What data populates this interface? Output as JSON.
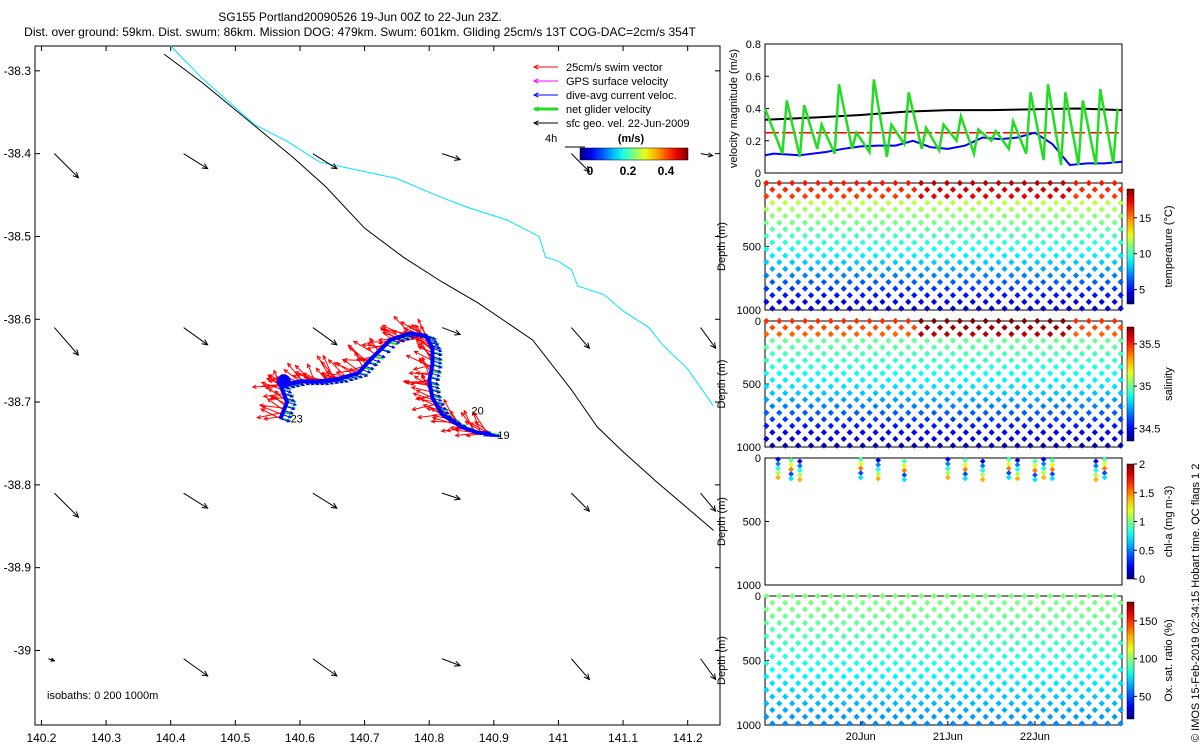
{
  "header": {
    "line1": "SG155 Portland20090526 19-Jun 00Z to 22-Jun 23Z.",
    "line2": "Dist. over ground: 59km. Dist. swum: 86km. Mission DOG: 479km. Swum: 601km. Gliding 25cm/s 13T COG-DAC=2cm/s 354T"
  },
  "credit": "© IMOS 15-Feb-2019 02:34:15 Hobart time. QC flags 1  2",
  "colors": {
    "swim": "#ff0000",
    "gps": "#ff00ff",
    "dac": "#0000ff",
    "net": "#22dd22",
    "geo": "#000000",
    "isobath200": "#000000",
    "isobath1000": "#00e5ff"
  },
  "chart_data": [
    {
      "type": "map",
      "xlim": [
        140.19,
        141.25
      ],
      "ylim": [
        -39.09,
        -38.27
      ],
      "xticks": [
        "140.2",
        "140.3",
        "140.4",
        "140.5",
        "140.6",
        "140.7",
        "140.8",
        "140.9",
        "141",
        "141.1",
        "141.2"
      ],
      "yticks": [
        "-38.3",
        "-38.4",
        "-38.5",
        "-38.6",
        "-38.7",
        "-38.8",
        "-38.9",
        "-39"
      ],
      "legend": {
        "entries": [
          "25cm/s swim vector",
          "GPS surface velocity",
          "dive-avg current veloc.",
          "net glider velocity",
          "sfc geo. vel. 22-Jun-2009"
        ],
        "scale_label": "4h",
        "colorbar_title": "(m/s)",
        "colorbar_ticks": [
          "0",
          "0.2",
          "0.4"
        ]
      },
      "isobath_label": "isobaths: 0   200   1000m",
      "track_labels": [
        {
          "text": "23",
          "lon": 140.57,
          "lat": -38.72
        },
        {
          "text": "20",
          "lon": 140.85,
          "lat": -38.71
        },
        {
          "text": "19",
          "lon": 140.89,
          "lat": -38.74
        }
      ],
      "track": [
        [
          140.57,
          -38.72
        ],
        [
          140.58,
          -38.7
        ],
        [
          140.57,
          -38.68
        ],
        [
          140.6,
          -38.675
        ],
        [
          140.63,
          -38.675
        ],
        [
          140.66,
          -38.672
        ],
        [
          140.69,
          -38.665
        ],
        [
          140.71,
          -38.648
        ],
        [
          140.74,
          -38.625
        ],
        [
          140.77,
          -38.617
        ],
        [
          140.795,
          -38.62
        ],
        [
          140.805,
          -38.635
        ],
        [
          140.805,
          -38.655
        ],
        [
          140.8,
          -38.675
        ],
        [
          140.805,
          -38.695
        ],
        [
          140.82,
          -38.715
        ],
        [
          140.85,
          -38.73
        ],
        [
          140.875,
          -38.737
        ],
        [
          140.895,
          -38.738
        ]
      ],
      "isobath_200": [
        [
          140.39,
          -38.28
        ],
        [
          140.45,
          -38.315
        ],
        [
          140.52,
          -38.36
        ],
        [
          140.59,
          -38.405
        ],
        [
          140.64,
          -38.44
        ],
        [
          140.7,
          -38.49
        ],
        [
          140.76,
          -38.525
        ],
        [
          140.82,
          -38.555
        ],
        [
          140.875,
          -38.58
        ],
        [
          140.96,
          -38.625
        ],
        [
          141.02,
          -38.685
        ],
        [
          141.06,
          -38.73
        ],
        [
          141.1,
          -38.76
        ],
        [
          141.15,
          -38.795
        ],
        [
          141.24,
          -38.855
        ]
      ],
      "isobath_1000": [
        [
          140.4,
          -38.27
        ],
        [
          140.45,
          -38.31
        ],
        [
          140.53,
          -38.365
        ],
        [
          140.58,
          -38.385
        ],
        [
          140.63,
          -38.41
        ],
        [
          140.69,
          -38.42
        ],
        [
          140.75,
          -38.43
        ],
        [
          140.81,
          -38.45
        ],
        [
          140.86,
          -38.465
        ],
        [
          140.92,
          -38.48
        ],
        [
          140.97,
          -38.5
        ],
        [
          140.98,
          -38.525
        ],
        [
          141.0,
          -38.53
        ],
        [
          141.02,
          -38.54
        ],
        [
          141.03,
          -38.56
        ],
        [
          141.07,
          -38.57
        ],
        [
          141.1,
          -38.59
        ],
        [
          141.14,
          -38.61
        ],
        [
          141.16,
          -38.63
        ],
        [
          141.2,
          -38.66
        ],
        [
          141.24,
          -38.705
        ]
      ],
      "geo_vectors": {
        "lons": [
          140.22,
          140.42,
          140.62,
          140.82,
          141.02,
          141.22
        ],
        "lats": [
          -38.4,
          -38.61,
          -38.81,
          -39.01
        ],
        "u": [
          0.08,
          0.08,
          0.08,
          0.06,
          0.06,
          0.05
        ],
        "v": [
          -0.08,
          -0.05,
          -0.05,
          -0.02,
          -0.06,
          -0.06
        ]
      }
    },
    {
      "type": "line",
      "ylabel": "velocity magnitude (m/s)",
      "xlim": [
        18.9,
        23.0
      ],
      "ylim": [
        0,
        0.8
      ],
      "yticks": [
        "0",
        "0.2",
        "0.4",
        "0.6",
        "0.8"
      ],
      "series": [
        {
          "name": "sfc geo. vel.",
          "color": "#000000",
          "x": [
            18.9,
            19.5,
            20.0,
            20.5,
            21.0,
            21.5,
            22.0,
            22.5,
            23.0
          ],
          "y": [
            0.33,
            0.345,
            0.36,
            0.38,
            0.39,
            0.39,
            0.395,
            0.4,
            0.39
          ]
        },
        {
          "name": "25cm/s swim vector",
          "color": "#ff0000",
          "x": [
            18.9,
            23.0
          ],
          "y": [
            0.25,
            0.25
          ]
        },
        {
          "name": "dive-avg current veloc.",
          "color": "#0000ff",
          "x": [
            18.9,
            19.0,
            19.3,
            19.6,
            19.8,
            20.0,
            20.2,
            20.4,
            20.6,
            20.8,
            21.0,
            21.2,
            21.4,
            21.6,
            21.8,
            22.0,
            22.2,
            22.4,
            22.6,
            22.8,
            23.0
          ],
          "y": [
            0.11,
            0.12,
            0.11,
            0.13,
            0.15,
            0.165,
            0.17,
            0.17,
            0.2,
            0.16,
            0.15,
            0.17,
            0.22,
            0.21,
            0.22,
            0.25,
            0.18,
            0.05,
            0.06,
            0.06,
            0.07
          ]
        },
        {
          "name": "net glider velocity",
          "color": "#22dd22",
          "x": [
            18.9,
            19.1,
            19.15,
            19.3,
            19.35,
            19.5,
            19.55,
            19.7,
            19.75,
            19.9,
            19.95,
            20.1,
            20.15,
            20.3,
            20.35,
            20.5,
            20.55,
            20.7,
            20.75,
            20.9,
            20.95,
            21.1,
            21.15,
            21.3,
            21.35,
            21.5,
            21.55,
            21.7,
            21.75,
            21.9,
            21.95,
            22.1,
            22.15,
            22.3,
            22.35,
            22.5,
            22.55,
            22.7,
            22.75,
            22.9,
            22.95
          ],
          "y": [
            0.4,
            0.12,
            0.45,
            0.1,
            0.42,
            0.15,
            0.3,
            0.12,
            0.55,
            0.15,
            0.25,
            0.13,
            0.58,
            0.1,
            0.3,
            0.18,
            0.5,
            0.15,
            0.28,
            0.14,
            0.3,
            0.2,
            0.35,
            0.12,
            0.27,
            0.2,
            0.26,
            0.15,
            0.32,
            0.12,
            0.5,
            0.08,
            0.55,
            0.05,
            0.5,
            0.05,
            0.45,
            0.05,
            0.52,
            0.06,
            0.4
          ]
        }
      ]
    },
    {
      "type": "scatter",
      "ylabel": "Depth (m)",
      "clabel": "temperature (°C)",
      "ylim": [
        0,
        1000
      ],
      "yticks": [
        "0",
        "500",
        "1000"
      ],
      "clim": [
        3,
        19
      ],
      "cticks": [
        {
          "v": 5,
          "t": "5"
        },
        {
          "v": 10,
          "t": "10"
        },
        {
          "v": 15,
          "t": "15"
        }
      ],
      "profile": {
        "surface": [
          16,
          18
        ],
        "mid": [
          9,
          12
        ],
        "deep": 4
      },
      "dives_from": 0,
      "depth_max": 1000
    },
    {
      "type": "scatter",
      "ylabel": "Depth (m)",
      "clabel": "salinity",
      "ylim": [
        0,
        1000
      ],
      "yticks": [
        "0",
        "500",
        "1000"
      ],
      "clim": [
        34.35,
        35.7
      ],
      "cticks": [
        {
          "v": 34.5,
          "t": "34.5"
        },
        {
          "v": 35,
          "t": "35"
        },
        {
          "v": 35.5,
          "t": "35.5"
        }
      ],
      "profile": {
        "surface": [
          35.35,
          35.7
        ],
        "mid": [
          34.8,
          35.0
        ],
        "deep": 34.4
      },
      "dives_from": 0,
      "depth_max": 1000
    },
    {
      "type": "scatter",
      "ylabel": "Depth (m)",
      "clabel": "chl-a (mg m-3)",
      "ylim": [
        0,
        1000
      ],
      "yticks": [
        "0",
        "500",
        "1000"
      ],
      "clim": [
        0,
        2
      ],
      "cticks": [
        {
          "v": 0,
          "t": "0"
        },
        {
          "v": 0.5,
          "t": "0.5"
        },
        {
          "v": 1,
          "t": "1"
        },
        {
          "v": 1.5,
          "t": "1.5"
        },
        {
          "v": 2,
          "t": "2"
        }
      ],
      "sparse": [
        19.05,
        19.2,
        19.3,
        20.0,
        20.2,
        20.5,
        21.0,
        21.2,
        21.4,
        21.7,
        21.8,
        22.0,
        22.1,
        22.2,
        22.7,
        22.8
      ],
      "depth_max": 180
    },
    {
      "type": "scatter",
      "ylabel": "Depth (m)",
      "clabel": "Ox. sat. ratio (%)",
      "ylim": [
        0,
        1000
      ],
      "yticks": [
        "0",
        "500",
        "1000"
      ],
      "clim": [
        20,
        175
      ],
      "cticks": [
        {
          "v": 50,
          "t": "50"
        },
        {
          "v": 100,
          "t": "100"
        },
        {
          "v": 150,
          "t": "150"
        }
      ],
      "profile": {
        "surface": [
          90,
          105
        ],
        "mid": [
          80,
          95
        ],
        "deep": 60
      },
      "dives_from": 0,
      "depth_max": 1000,
      "xticks": [
        {
          "x": 20,
          "t": "20Jun"
        },
        {
          "x": 21,
          "t": "21Jun"
        },
        {
          "x": 22,
          "t": "22Jun"
        }
      ]
    }
  ]
}
